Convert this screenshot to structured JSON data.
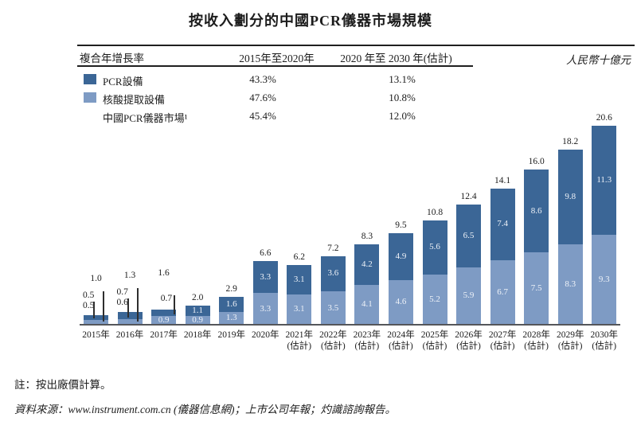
{
  "title": "按收入劃分的中國PCR儀器市場規模",
  "unit_label": "人民幣十億元",
  "cagr_table": {
    "header": [
      "複合年增長率",
      "2015年至2020年",
      "2020 年至 2030 年(估計)"
    ],
    "rows": [
      {
        "label": "PCR設備",
        "swatch": "dark",
        "cagr_2015_2020": "43.3%",
        "cagr_2020_2030": "13.1%"
      },
      {
        "label": "核酸提取設備",
        "swatch": "light",
        "cagr_2015_2020": "47.6%",
        "cagr_2020_2030": "10.8%"
      },
      {
        "label": "中國PCR儀器市場¹",
        "swatch": "none",
        "cagr_2015_2020": "45.4%",
        "cagr_2020_2030": "12.0%"
      }
    ]
  },
  "colors": {
    "pcr_equipment": "#3B6696",
    "nucleic_acid_equipment": "#7E9BC4",
    "axis_line": "#55565A",
    "rule_line": "#1f1f1f",
    "inside_label": "#eef2f8"
  },
  "chart_data": {
    "type": "bar",
    "stacked": true,
    "stack_order": "first-series-on-top",
    "title": "按收入劃分的中國PCR儀器市場規模",
    "ylabel": "人民幣十億元",
    "xlabel": "",
    "ylim": [
      0,
      22
    ],
    "gridlines": false,
    "legend_position": "top-table",
    "categories": [
      "2015年",
      "2016年",
      "2017年",
      "2018年",
      "2019年",
      "2020年",
      "2021年",
      "2022年",
      "2023年",
      "2024年",
      "2025年",
      "2026年",
      "2027年",
      "2028年",
      "2029年",
      "2030年"
    ],
    "estimate_from_index": 6,
    "estimate_suffix": "(估計)",
    "series": [
      {
        "name": "PCR設備",
        "color": "#3B6696",
        "values": [
          0.5,
          0.7,
          0.7,
          1.1,
          1.6,
          3.3,
          3.1,
          3.6,
          4.2,
          4.9,
          5.6,
          6.5,
          7.4,
          8.6,
          9.8,
          11.3
        ]
      },
      {
        "name": "核酸提取設備",
        "color": "#7E9BC4",
        "values": [
          0.5,
          0.6,
          0.9,
          0.9,
          1.3,
          3.3,
          3.1,
          3.5,
          4.1,
          4.6,
          5.2,
          5.9,
          6.7,
          7.5,
          8.3,
          9.3
        ]
      }
    ],
    "totals": [
      1.0,
      1.3,
      1.6,
      2.0,
      2.9,
      6.6,
      6.2,
      7.2,
      8.3,
      9.5,
      10.8,
      12.4,
      14.1,
      16.0,
      18.2,
      20.6
    ]
  },
  "footnotes": {
    "note": "註：按出廠價計算。",
    "source": "資料來源：www.instrument.com.cn (儀器信息網)；上市公司年報；灼識諮詢報告。"
  }
}
